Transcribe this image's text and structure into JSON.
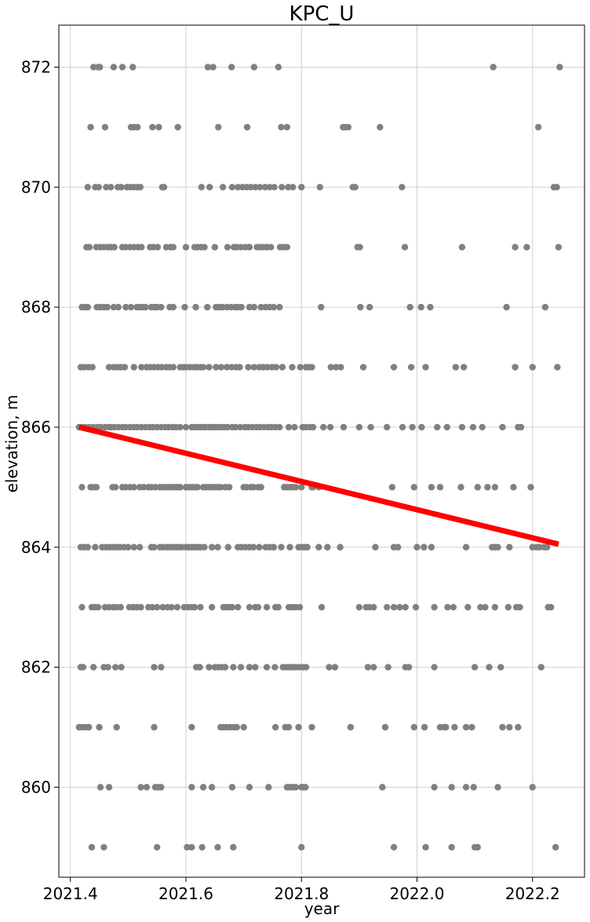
{
  "chart_data": {
    "type": "scatter",
    "title": "KPC_U",
    "xlabel": "year",
    "ylabel": "elevation, m",
    "xlim": [
      2021.38,
      2022.29
    ],
    "ylim": [
      858.5,
      872.7
    ],
    "xticks": [
      2021.4,
      2021.6,
      2021.8,
      2022.0,
      2022.2
    ],
    "xtick_labels": [
      "2021.4",
      "2021.6",
      "2021.8",
      "2022.0",
      "2022.2"
    ],
    "yticks": [
      860,
      862,
      864,
      866,
      868,
      870,
      872
    ],
    "ytick_labels": [
      "860",
      "862",
      "864",
      "866",
      "868",
      "870",
      "872"
    ],
    "grid": true,
    "point_color": "#808080",
    "trend_color": "#ff0000",
    "trend_line": {
      "x": [
        2021.415,
        2022.245
      ],
      "y": [
        866.0,
        864.05
      ]
    },
    "rows": [
      {
        "y": 872,
        "x": [
          2021.44,
          2021.448,
          2021.451,
          2021.475,
          2021.49,
          2021.508,
          2021.638,
          2021.647,
          2021.679,
          2021.718,
          2021.76,
          2022.132,
          2022.247
        ]
      },
      {
        "y": 871,
        "x": [
          2021.435,
          2021.46,
          2021.505,
          2021.51,
          2021.516,
          2021.542,
          2021.553,
          2021.586,
          2021.656,
          2021.706,
          2021.765,
          2021.775,
          2021.872,
          2021.876,
          2021.881,
          2021.936,
          2022.21
        ]
      },
      {
        "y": 870,
        "x": [
          2021.43,
          2021.443,
          2021.449,
          2021.462,
          2021.47,
          2021.482,
          2021.488,
          2021.498,
          2021.504,
          2021.51,
          2021.516,
          2021.521,
          2021.559,
          2021.562,
          2021.627,
          2021.641,
          2021.664,
          2021.68,
          2021.69,
          2021.698,
          2021.705,
          2021.712,
          2021.72,
          2021.728,
          2021.737,
          2021.745,
          2021.753,
          2021.766,
          2021.777,
          2021.785,
          2021.8,
          2021.832,
          2021.889,
          2021.893,
          2021.974,
          2022.237,
          2022.242
        ]
      },
      {
        "y": 869,
        "x": [
          2021.428,
          2021.433,
          2021.445,
          2021.452,
          2021.458,
          2021.465,
          2021.47,
          2021.476,
          2021.49,
          2021.496,
          2021.503,
          2021.51,
          2021.517,
          2021.523,
          2021.538,
          2021.544,
          2021.551,
          2021.566,
          2021.573,
          2021.578,
          2021.6,
          2021.615,
          2021.62,
          2021.626,
          2021.632,
          2021.65,
          2021.672,
          2021.683,
          2021.688,
          2021.695,
          2021.703,
          2021.71,
          2021.723,
          2021.728,
          2021.734,
          2021.74,
          2021.747,
          2021.763,
          2021.769,
          2021.775,
          2021.897,
          2021.901,
          2021.979,
          2022.078,
          2022.17,
          2022.19,
          2022.245
        ]
      },
      {
        "y": 868,
        "x": [
          2021.42,
          2021.425,
          2021.43,
          2021.446,
          2021.452,
          2021.458,
          2021.464,
          2021.475,
          2021.483,
          2021.496,
          2021.505,
          2021.515,
          2021.52,
          2021.525,
          2021.53,
          2021.54,
          2021.545,
          2021.55,
          2021.557,
          2021.572,
          2021.578,
          2021.598,
          2021.617,
          2021.637,
          2021.652,
          2021.658,
          2021.663,
          2021.671,
          2021.678,
          2021.685,
          2021.69,
          2021.696,
          2021.71,
          2021.718,
          2021.73,
          2021.738,
          2021.745,
          2021.752,
          2021.762,
          2021.834,
          2021.902,
          2021.918,
          2021.988,
          2022.007,
          2022.023,
          2022.155,
          2022.222
        ]
      },
      {
        "y": 867,
        "x": [
          2021.418,
          2021.424,
          2021.431,
          2021.438,
          2021.467,
          2021.475,
          2021.481,
          2021.487,
          2021.494,
          2021.51,
          2021.523,
          2021.532,
          2021.538,
          2021.545,
          2021.552,
          2021.558,
          2021.566,
          2021.572,
          2021.578,
          2021.59,
          2021.596,
          2021.6,
          2021.607,
          2021.614,
          2021.619,
          2021.625,
          2021.63,
          2021.64,
          2021.652,
          2021.661,
          2021.671,
          2021.679,
          2021.687,
          2021.693,
          2021.708,
          2021.718,
          2021.727,
          2021.734,
          2021.741,
          2021.749,
          2021.756,
          2021.767,
          2021.784,
          2021.798,
          2021.808,
          2021.813,
          2021.818,
          2021.851,
          2021.86,
          2021.868,
          2021.907,
          2021.96,
          2021.99,
          2022.015,
          2022.067,
          2022.081,
          2022.17,
          2022.2,
          2022.243
        ]
      },
      {
        "y": 866,
        "x": [
          2021.415,
          2021.42,
          2021.426,
          2021.433,
          2021.44,
          2021.447,
          2021.453,
          2021.46,
          2021.466,
          2021.47,
          2021.476,
          2021.483,
          2021.49,
          2021.496,
          2021.503,
          2021.51,
          2021.516,
          2021.523,
          2021.53,
          2021.537,
          2021.543,
          2021.55,
          2021.557,
          2021.564,
          2021.57,
          2021.577,
          2021.583,
          2021.59,
          2021.6,
          2021.61,
          2021.615,
          2021.62,
          2021.625,
          2021.63,
          2021.634,
          2021.64,
          2021.645,
          2021.65,
          2021.655,
          2021.66,
          2021.666,
          2021.672,
          2021.68,
          2021.686,
          2021.694,
          2021.702,
          2021.708,
          2021.715,
          2021.722,
          2021.728,
          2021.735,
          2021.742,
          2021.748,
          2021.755,
          2021.762,
          2021.778,
          2021.788,
          2021.802,
          2021.808,
          2021.815,
          2021.82,
          2021.838,
          2021.85,
          2021.873,
          2021.9,
          2021.92,
          2021.948,
          2021.975,
          2021.992,
          2022.008,
          2022.035,
          2022.052,
          2022.078,
          2022.097,
          2022.113,
          2022.148,
          2022.175,
          2022.18
        ]
      },
      {
        "y": 865,
        "x": [
          2021.42,
          2021.435,
          2021.44,
          2021.445,
          2021.473,
          2021.478,
          2021.49,
          2021.496,
          2021.503,
          2021.51,
          2021.52,
          2021.527,
          2021.535,
          2021.54,
          2021.547,
          2021.555,
          2021.56,
          2021.565,
          2021.57,
          2021.575,
          2021.58,
          2021.585,
          2021.59,
          2021.6,
          2021.605,
          2021.61,
          2021.615,
          2021.62,
          2021.63,
          2021.635,
          2021.64,
          2021.645,
          2021.65,
          2021.655,
          2021.66,
          2021.668,
          2021.675,
          2021.7,
          2021.705,
          2021.712,
          2021.717,
          2021.725,
          2021.73,
          2021.77,
          2021.775,
          2021.78,
          2021.785,
          2021.79,
          2021.8,
          2021.818,
          2021.82,
          2021.83,
          2021.957,
          2021.995,
          2022.025,
          2022.04,
          2022.076,
          2022.105,
          2022.122,
          2022.135,
          2022.167,
          2022.197
        ]
      },
      {
        "y": 864,
        "x": [
          2021.418,
          2021.424,
          2021.43,
          2021.443,
          2021.455,
          2021.462,
          2021.468,
          2021.474,
          2021.48,
          2021.486,
          2021.493,
          2021.5,
          2021.51,
          2021.52,
          2021.54,
          2021.545,
          2021.555,
          2021.56,
          2021.567,
          2021.572,
          2021.578,
          2021.583,
          2021.588,
          2021.593,
          2021.6,
          2021.605,
          2021.61,
          2021.615,
          2021.62,
          2021.625,
          2021.632,
          2021.645,
          2021.655,
          2021.673,
          2021.69,
          2021.696,
          2021.703,
          2021.71,
          2021.717,
          2021.727,
          2021.738,
          2021.745,
          2021.752,
          2021.765,
          2021.78,
          2021.795,
          2021.8,
          2021.805,
          2021.81,
          2021.83,
          2021.845,
          2021.867,
          2021.928,
          2021.96,
          2021.967,
          2022.0,
          2022.012,
          2022.025,
          2022.085,
          2022.13,
          2022.135,
          2022.14,
          2022.16,
          2022.2,
          2022.207,
          2022.212,
          2022.22,
          2022.225
        ]
      },
      {
        "y": 863,
        "x": [
          2021.42,
          2021.437,
          2021.442,
          2021.448,
          2021.46,
          2021.467,
          2021.474,
          2021.48,
          2021.487,
          2021.502,
          2021.509,
          2021.515,
          2021.522,
          2021.535,
          2021.542,
          2021.55,
          2021.56,
          2021.568,
          2021.575,
          2021.585,
          2021.597,
          2021.604,
          2021.61,
          2021.615,
          2021.625,
          2021.645,
          2021.665,
          2021.67,
          2021.675,
          2021.68,
          2021.69,
          2021.71,
          2021.72,
          2021.725,
          2021.74,
          2021.755,
          2021.76,
          2021.778,
          2021.784,
          2021.79,
          2021.797,
          2021.835,
          2021.9,
          2021.912,
          2021.918,
          2021.925,
          2021.948,
          2021.96,
          2021.97,
          2021.98,
          2021.998,
          2022.03,
          2022.053,
          2022.063,
          2022.088,
          2022.11,
          2022.118,
          2022.135,
          2022.158,
          2022.172,
          2022.178,
          2022.227,
          2022.232
        ]
      },
      {
        "y": 862,
        "x": [
          2021.418,
          2021.422,
          2021.44,
          2021.458,
          2021.465,
          2021.478,
          2021.488,
          2021.545,
          2021.557,
          2021.618,
          2021.624,
          2021.64,
          2021.65,
          2021.656,
          2021.662,
          2021.668,
          2021.682,
          2021.695,
          2021.71,
          2021.72,
          2021.74,
          2021.754,
          2021.768,
          2021.774,
          2021.779,
          2021.784,
          2021.79,
          2021.796,
          2021.802,
          2021.808,
          2021.848,
          2021.858,
          2021.915,
          2021.925,
          2021.95,
          2021.98,
          2021.986,
          2022.03,
          2022.1,
          2022.125,
          2022.145,
          2022.215
        ]
      },
      {
        "y": 861,
        "x": [
          2021.415,
          2021.42,
          2021.426,
          2021.432,
          2021.45,
          2021.48,
          2021.545,
          2021.61,
          2021.66,
          2021.665,
          2021.67,
          2021.676,
          2021.683,
          2021.688,
          2021.7,
          2021.755,
          2021.772,
          2021.778,
          2021.795,
          2021.818,
          2021.885,
          2021.945,
          2021.995,
          2022.013,
          2022.04,
          2022.047,
          2022.05,
          2022.065,
          2022.085,
          2022.095,
          2022.148,
          2022.16,
          2022.175
        ]
      },
      {
        "y": 860,
        "x": [
          2021.452,
          2021.467,
          2021.522,
          2021.532,
          2021.547,
          2021.552,
          2021.557,
          2021.61,
          2021.63,
          2021.645,
          2021.68,
          2021.71,
          2021.743,
          2021.775,
          2021.78,
          2021.785,
          2021.79,
          2021.8,
          2021.803,
          2021.807,
          2021.94,
          2022.03,
          2022.06,
          2022.085,
          2022.098,
          2022.14,
          2022.2
        ]
      },
      {
        "y": 859,
        "x": [
          2021.437,
          2021.458,
          2021.55,
          2021.602,
          2021.61,
          2021.628,
          2021.655,
          2021.682,
          2021.8,
          2021.96,
          2022.015,
          2022.06,
          2022.1,
          2022.105,
          2022.24
        ]
      }
    ]
  }
}
